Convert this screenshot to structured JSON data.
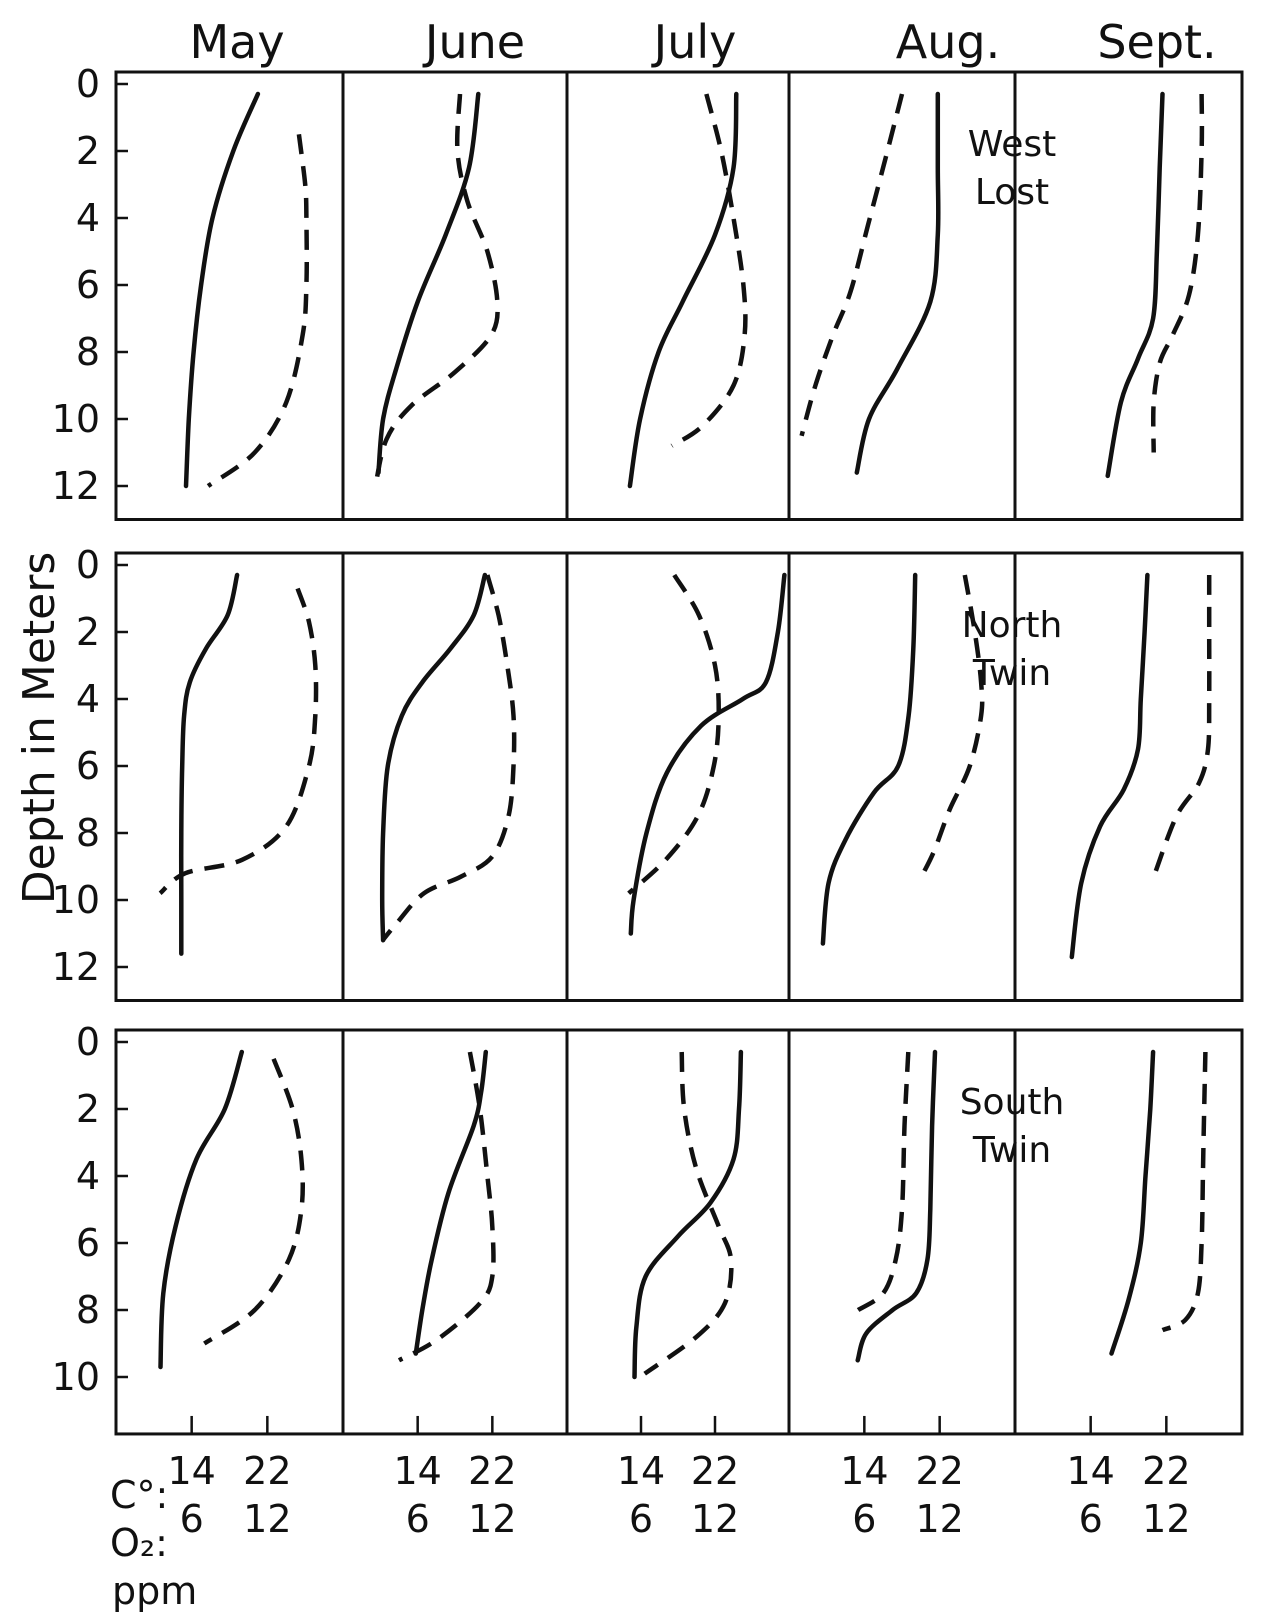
{
  "chart_data": {
    "type": "line",
    "ylabel": "Depth in Meters",
    "months": [
      "May",
      "June",
      "July",
      "Aug.",
      "Sept."
    ],
    "y_ticks": [
      0,
      2,
      4,
      6,
      8,
      10,
      12
    ],
    "y_ticks_bottom": [
      0,
      2,
      4,
      6,
      8,
      10
    ],
    "temp_ticks": [
      14,
      22
    ],
    "oxygen_ticks": [
      6,
      12
    ],
    "scale_labels": {
      "temp_prefix": "C°:",
      "oxygen_prefix": "O₂:",
      "oxygen_unit": "ppm"
    },
    "temp_range": [
      6,
      30
    ],
    "oxygen_range": [
      0,
      18
    ],
    "series_styles": {
      "temperature": "solid",
      "oxygen": "dashed"
    },
    "panels": [
      {
        "lake": [
          "West",
          "Lost"
        ],
        "ymax": 13,
        "months": [
          {
            "temp": [
              [
                21.0,
                0.3
              ],
              [
                18.4,
                2
              ],
              [
                16.2,
                4
              ],
              [
                15.0,
                6
              ],
              [
                14.2,
                8
              ],
              [
                13.7,
                10
              ],
              [
                13.4,
                12
              ]
            ],
            "oxygen": [
              [
                14.5,
                1.5
              ],
              [
                15.0,
                3
              ],
              [
                15.1,
                4
              ],
              [
                15.1,
                6
              ],
              [
                14.8,
                7.5
              ],
              [
                13.5,
                9.5
              ],
              [
                11.0,
                11
              ],
              [
                7.3,
                12
              ]
            ]
          },
          {
            "temp": [
              [
                20.5,
                0.3
              ],
              [
                19.5,
                2.5
              ],
              [
                17.0,
                4.5
              ],
              [
                14.0,
                6.5
              ],
              [
                11.7,
                8.5
              ],
              [
                10.3,
                10
              ],
              [
                9.8,
                11.6
              ]
            ],
            "oxygen": [
              [
                9.4,
                0.3
              ],
              [
                9.2,
                2
              ],
              [
                10.0,
                3.5
              ],
              [
                11.6,
                5
              ],
              [
                12.4,
                6.5
              ],
              [
                11.9,
                7.5
              ],
              [
                9.0,
                8.6
              ],
              [
                5.5,
                9.6
              ],
              [
                3.5,
                10.6
              ],
              [
                2.6,
                12
              ]
            ]
          },
          {
            "temp": [
              [
                24.3,
                0.3
              ],
              [
                24.0,
                2.5
              ],
              [
                22.0,
                4.5
              ],
              [
                18.5,
                6.5
              ],
              [
                15.9,
                8
              ],
              [
                13.9,
                10
              ],
              [
                12.8,
                12
              ]
            ],
            "oxygen": [
              [
                11.3,
                0.3
              ],
              [
                12.5,
                2
              ],
              [
                13.5,
                4
              ],
              [
                14.3,
                6
              ],
              [
                14.4,
                7.5
              ],
              [
                13.5,
                9
              ],
              [
                11.0,
                10.2
              ],
              [
                8.5,
                10.8
              ]
            ]
          },
          {
            "temp": [
              [
                21.8,
                0.3
              ],
              [
                21.8,
                2.5
              ],
              [
                21.8,
                4.5
              ],
              [
                21.0,
                6.5
              ],
              [
                17.5,
                8.5
              ],
              [
                14.5,
                10
              ],
              [
                13.2,
                11.6
              ]
            ],
            "oxygen": [
              [
                9.0,
                0.3
              ],
              [
                7.7,
                2.2
              ],
              [
                6.3,
                4.2
              ],
              [
                4.9,
                6.2
              ],
              [
                3.5,
                7.5
              ],
              [
                2.1,
                9
              ],
              [
                1.0,
                10.5
              ]
            ]
          },
          {
            "temp": [
              [
                21.6,
                0.3
              ],
              [
                21.3,
                2.5
              ],
              [
                21.0,
                5
              ],
              [
                20.6,
                7
              ],
              [
                19.0,
                8.2
              ],
              [
                17.2,
                9.5
              ],
              [
                15.8,
                11.7
              ]
            ],
            "oxygen": [
              [
                14.8,
                0.3
              ],
              [
                14.8,
                2
              ],
              [
                14.5,
                4.5
              ],
              [
                13.8,
                6.3
              ],
              [
                12.5,
                7.5
              ],
              [
                11.5,
                8.3
              ],
              [
                11.0,
                9.5
              ],
              [
                11.0,
                11
              ]
            ]
          }
        ]
      },
      {
        "lake": [
          "North",
          "Twin"
        ],
        "ymax": 13,
        "months": [
          {
            "temp": [
              [
                18.8,
                0.3
              ],
              [
                17.8,
                1.5
              ],
              [
                15.5,
                2.5
              ],
              [
                13.8,
                3.5
              ],
              [
                13.2,
                4.5
              ],
              [
                13.0,
                6
              ],
              [
                12.9,
                8
              ],
              [
                12.9,
                10
              ],
              [
                12.9,
                11.6
              ]
            ],
            "oxygen": [
              [
                14.4,
                0.7
              ],
              [
                15.3,
                1.7
              ],
              [
                15.8,
                3
              ],
              [
                15.8,
                4.5
              ],
              [
                15.3,
                6
              ],
              [
                13.5,
                7.8
              ],
              [
                10.0,
                8.8
              ],
              [
                5.5,
                9.2
              ],
              [
                3.5,
                9.8
              ]
            ]
          },
          {
            "temp": [
              [
                21.2,
                0.3
              ],
              [
                20.0,
                1.5
              ],
              [
                17.5,
                2.5
              ],
              [
                14.5,
                3.5
              ],
              [
                12.3,
                4.5
              ],
              [
                10.8,
                6
              ],
              [
                10.3,
                8
              ],
              [
                10.2,
                10
              ],
              [
                10.3,
                11.2
              ]
            ],
            "oxygen": [
              [
                11.6,
                0.3
              ],
              [
                12.5,
                1.5
              ],
              [
                13.2,
                3
              ],
              [
                13.7,
                4.5
              ],
              [
                13.7,
                6
              ],
              [
                13.3,
                7.5
              ],
              [
                12.0,
                8.7
              ],
              [
                9.5,
                9.3
              ],
              [
                6.5,
                9.8
              ],
              [
                4.3,
                10.7
              ],
              [
                3.2,
                11.2
              ]
            ]
          },
          {
            "temp": [
              [
                29.5,
                0.3
              ],
              [
                28.8,
                2
              ],
              [
                27.5,
                3.5
              ],
              [
                25.0,
                4
              ],
              [
                20.5,
                4.8
              ],
              [
                16.8,
                6.2
              ],
              [
                14.6,
                8
              ],
              [
                13.2,
                10
              ],
              [
                12.9,
                11
              ]
            ],
            "oxygen": [
              [
                8.7,
                0.3
              ],
              [
                10.7,
                1.5
              ],
              [
                12.0,
                3
              ],
              [
                12.3,
                4.5
              ],
              [
                11.9,
                6
              ],
              [
                10.6,
                7.5
              ],
              [
                8.0,
                8.8
              ],
              [
                5.0,
                9.8
              ]
            ]
          },
          {
            "temp": [
              [
                19.4,
                0.3
              ],
              [
                19.2,
                2.5
              ],
              [
                18.7,
                4.5
              ],
              [
                17.6,
                6
              ],
              [
                15.0,
                6.8
              ],
              [
                12.0,
                8.2
              ],
              [
                10.2,
                9.5
              ],
              [
                9.6,
                11.3
              ]
            ],
            "oxygen": [
              [
                14.0,
                0.3
              ],
              [
                14.8,
                2
              ],
              [
                15.3,
                3.5
              ],
              [
                15.3,
                4.5
              ],
              [
                14.4,
                6
              ],
              [
                12.8,
                7.3
              ],
              [
                11.6,
                8.5
              ],
              [
                10.7,
                9.2
              ]
            ]
          },
          {
            "temp": [
              [
                20.0,
                0.3
              ],
              [
                19.7,
                2
              ],
              [
                19.3,
                4
              ],
              [
                19.0,
                5.5
              ],
              [
                17.5,
                6.7
              ],
              [
                15.0,
                7.8
              ],
              [
                13.0,
                9.5
              ],
              [
                12.0,
                11.7
              ]
            ],
            "oxygen": [
              [
                15.4,
                0.3
              ],
              [
                15.4,
                2
              ],
              [
                15.4,
                4
              ],
              [
                15.3,
                5.5
              ],
              [
                14.6,
                6.5
              ],
              [
                12.8,
                7.5
              ],
              [
                11.1,
                9.2
              ]
            ]
          }
        ]
      },
      {
        "lake": [
          "South",
          "Twin"
        ],
        "ymax": 11.7,
        "months": [
          {
            "temp": [
              [
                19.3,
                0.3
              ],
              [
                17.5,
                2
              ],
              [
                14.5,
                3.5
              ],
              [
                12.3,
                5.5
              ],
              [
                11.0,
                7.5
              ],
              [
                10.7,
                9.7
              ]
            ],
            "oxygen": [
              [
                12.5,
                0.5
              ],
              [
                14.0,
                2
              ],
              [
                14.7,
                3.5
              ],
              [
                14.7,
                5
              ],
              [
                13.7,
                6.5
              ],
              [
                11.0,
                8
              ],
              [
                7.0,
                9
              ]
            ]
          },
          {
            "temp": [
              [
                21.3,
                0.3
              ],
              [
                20.8,
                1.5
              ],
              [
                20.0,
                2.5
              ],
              [
                17.3,
                4.5
              ],
              [
                15.5,
                6.5
              ],
              [
                14.5,
                8
              ],
              [
                13.8,
                9.3
              ]
            ],
            "oxygen": [
              [
                10.2,
                0.3
              ],
              [
                11.0,
                2
              ],
              [
                11.6,
                4
              ],
              [
                12.0,
                5.5
              ],
              [
                12.0,
                7
              ],
              [
                11.0,
                7.8
              ],
              [
                7.5,
                8.9
              ],
              [
                4.5,
                9.5
              ]
            ]
          },
          {
            "temp": [
              [
                24.8,
                0.3
              ],
              [
                24.6,
                2
              ],
              [
                24.0,
                3.5
              ],
              [
                21.5,
                4.8
              ],
              [
                18.0,
                5.8
              ],
              [
                14.5,
                7
              ],
              [
                13.5,
                8.5
              ],
              [
                13.3,
                10
              ]
            ],
            "oxygen": [
              [
                9.3,
                0.3
              ],
              [
                9.5,
                2
              ],
              [
                10.5,
                3.8
              ],
              [
                12.3,
                5.5
              ],
              [
                13.3,
                6.5
              ],
              [
                12.8,
                7.8
              ],
              [
                10.5,
                8.8
              ],
              [
                6.3,
                9.9
              ]
            ]
          },
          {
            "temp": [
              [
                21.5,
                0.3
              ],
              [
                21.2,
                2.5
              ],
              [
                21.0,
                5
              ],
              [
                20.7,
                6.5
              ],
              [
                19.5,
                7.5
              ],
              [
                17.0,
                8
              ],
              [
                14.2,
                8.7
              ],
              [
                13.3,
                9.5
              ]
            ],
            "oxygen": [
              [
                9.5,
                0.3
              ],
              [
                9.2,
                2.5
              ],
              [
                9.0,
                5
              ],
              [
                8.5,
                6.5
              ],
              [
                7.5,
                7.5
              ],
              [
                5.5,
                8
              ]
            ],
            "label_note": ""
          },
          {
            "temp": [
              [
                20.6,
                0.3
              ],
              [
                20.3,
                2
              ],
              [
                19.8,
                4
              ],
              [
                19.3,
                6
              ],
              [
                18.0,
                7.7
              ],
              [
                16.2,
                9.3
              ]
            ],
            "oxygen": [
              [
                15.1,
                0.3
              ],
              [
                15.0,
                2
              ],
              [
                14.9,
                4
              ],
              [
                14.8,
                6
              ],
              [
                14.5,
                7.5
              ],
              [
                13.5,
                8.3
              ],
              [
                11.7,
                8.6
              ]
            ]
          }
        ]
      }
    ]
  }
}
